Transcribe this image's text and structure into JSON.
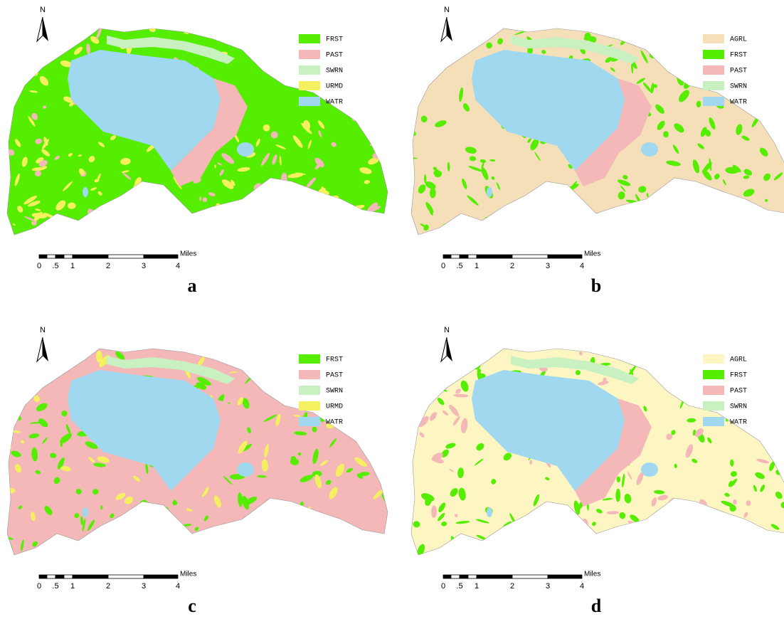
{
  "panels": [
    {
      "label": "a",
      "north": "N",
      "legend": [
        {
          "name": "FRST",
          "color": "#55ee00"
        },
        {
          "name": "PAST",
          "color": "#f4b8b8"
        },
        {
          "name": "SWRN",
          "color": "#c8f0c0"
        },
        {
          "name": "URMD",
          "color": "#f5f060"
        },
        {
          "name": "WATR",
          "color": "#9fd8ef"
        }
      ],
      "scale_bar": {
        "ticks": [
          "0",
          ".5",
          "1",
          "2",
          "3",
          "4"
        ],
        "unit": "Miles"
      }
    },
    {
      "label": "b",
      "north": "N",
      "legend": [
        {
          "name": "AGRL",
          "color": "#f5dfb8"
        },
        {
          "name": "FRST",
          "color": "#55ee00"
        },
        {
          "name": "PAST",
          "color": "#f4b8b8"
        },
        {
          "name": "SWRN",
          "color": "#c8f0c0"
        },
        {
          "name": "WATR",
          "color": "#9fd8ef"
        }
      ],
      "scale_bar": {
        "ticks": [
          "0",
          ".5",
          "1",
          "2",
          "3",
          "4"
        ],
        "unit": "Miles"
      }
    },
    {
      "label": "c",
      "north": "N",
      "legend": [
        {
          "name": "FRST",
          "color": "#55ee00"
        },
        {
          "name": "PAST",
          "color": "#f4b8b8"
        },
        {
          "name": "SWRN",
          "color": "#c8f0c0"
        },
        {
          "name": "URMD",
          "color": "#f5f060"
        },
        {
          "name": "WATR",
          "color": "#9fd8ef"
        }
      ],
      "scale_bar": {
        "ticks": [
          "0",
          ".5",
          "1",
          "2",
          "3",
          "4"
        ],
        "unit": "Miles"
      }
    },
    {
      "label": "d",
      "north": "N",
      "legend": [
        {
          "name": "AGRL",
          "color": "#fdf6c3"
        },
        {
          "name": "FRST",
          "color": "#55ee00"
        },
        {
          "name": "PAST",
          "color": "#f4b8b8"
        },
        {
          "name": "SWRN",
          "color": "#c8f0c0"
        },
        {
          "name": "WATR",
          "color": "#9fd8ef"
        }
      ],
      "scale_bar": {
        "ticks": [
          "0",
          ".5",
          "1",
          "2",
          "3",
          "4"
        ],
        "unit": "Miles"
      }
    }
  ]
}
